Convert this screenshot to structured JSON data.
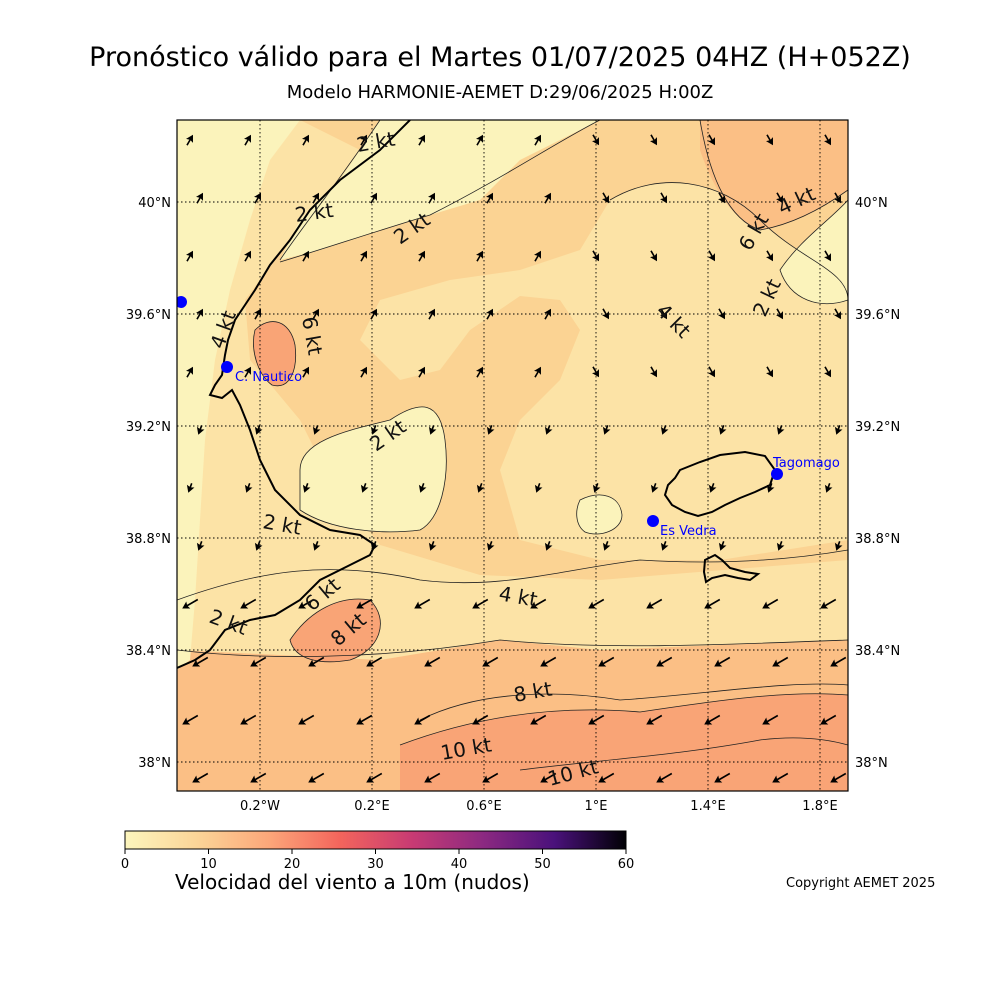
{
  "header": {
    "title": "Pronóstico válido para el Martes 01/07/2025 04HZ (H+052Z)",
    "subtitle": "Modelo HARMONIE-AEMET D:29/06/2025 H:00Z"
  },
  "axes": {
    "lat_labels": [
      "40°N",
      "39.6°N",
      "39.2°N",
      "38.8°N",
      "38.4°N",
      "38°N"
    ],
    "lon_labels": [
      "0.2°W",
      "0.2°E",
      "0.6°E",
      "1°E",
      "1.4°E",
      "1.8°E"
    ]
  },
  "contour_labels": [
    "2 kt",
    "2 kt",
    "2 kt",
    "4 kt",
    "6 kt",
    "2 kt",
    "2 kt",
    "6 kt",
    "4 kt",
    "4 kt",
    "2 kt",
    "6 kt",
    "8 kt",
    "2 kt",
    "4 kt",
    "8 kt",
    "10 kt",
    "10 kt"
  ],
  "stations": [
    {
      "name": "C. Nautico"
    },
    {
      "name": "Tagomago"
    },
    {
      "name": "Es Vedra"
    },
    {
      "name": ""
    }
  ],
  "colorbar": {
    "title": "Velocidad del viento a 10m (nudos)",
    "ticks": [
      "0",
      "10",
      "20",
      "30",
      "40",
      "50",
      "60"
    ],
    "colors": [
      "#fcf5bd",
      "#fbd598",
      "#fca77a",
      "#f3655c",
      "#c83b73",
      "#8c2981",
      "#4a117b",
      "#000004"
    ]
  },
  "footer": {
    "copyright": "Copyright AEMET 2025"
  },
  "colors": {
    "calm": "#fbf3bb",
    "light": "#fce3a6",
    "moderate": "#fbd393",
    "fresh": "#fbbf85",
    "strong": "#f9a476",
    "station": "#0000ff"
  }
}
